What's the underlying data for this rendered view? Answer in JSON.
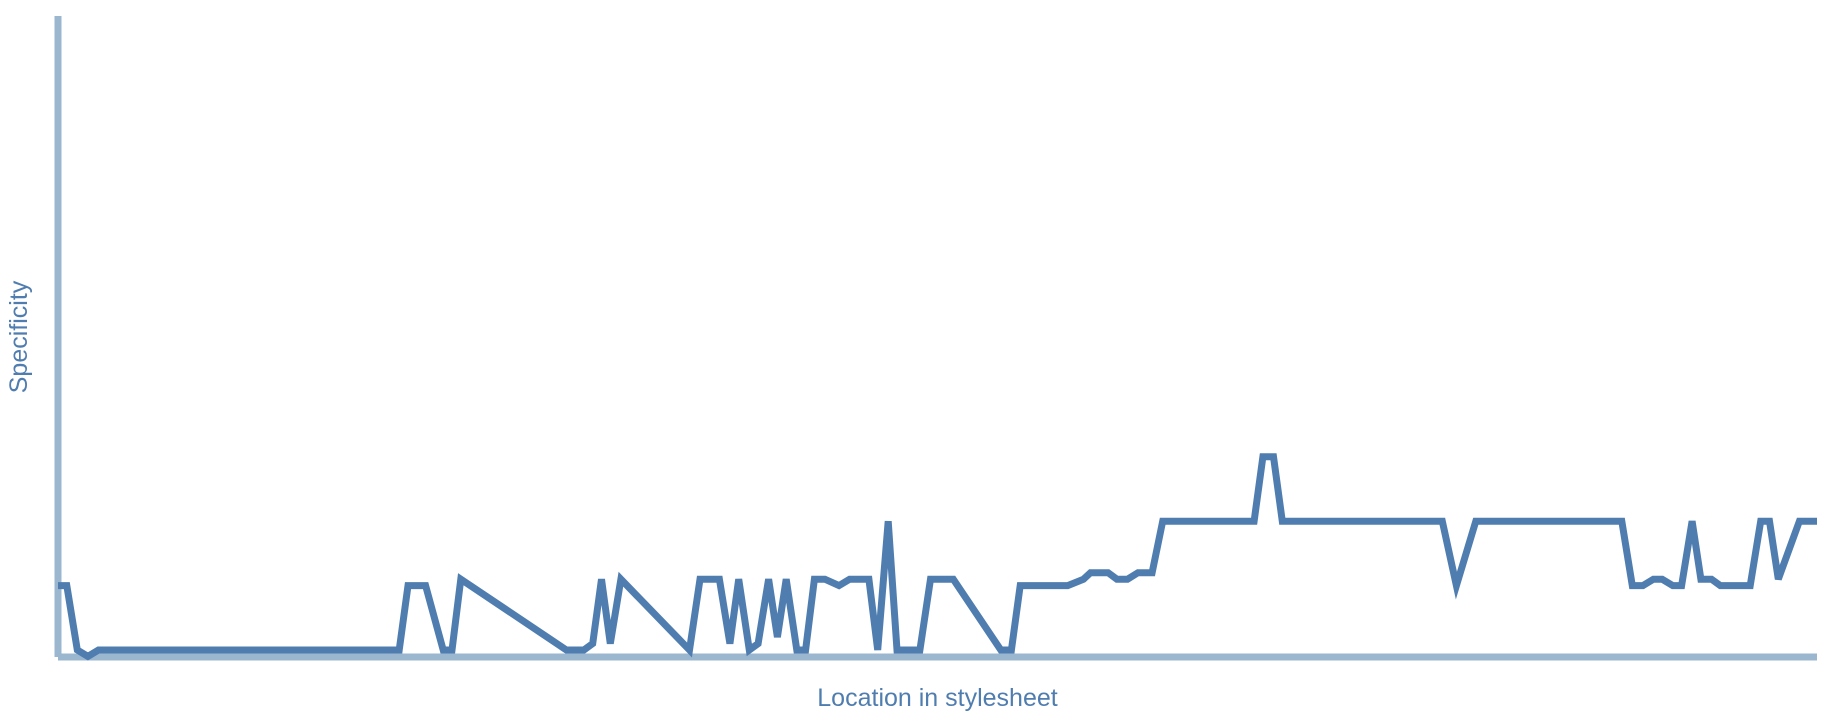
{
  "chart_data": {
    "type": "line",
    "xlabel": "Location in stylesheet",
    "ylabel": "Specificity",
    "colors": {
      "series": "#507daf",
      "axis": "#9bb6cf",
      "label": "#507daf"
    },
    "grid": false,
    "xlim": [
      0,
      1
    ],
    "ylim": [
      0,
      100
    ],
    "x": [
      0.0,
      0.005,
      0.011,
      0.017,
      0.023,
      0.194,
      0.199,
      0.209,
      0.219,
      0.224,
      0.229,
      0.289,
      0.294,
      0.299,
      0.304,
      0.309,
      0.314,
      0.32,
      0.359,
      0.365,
      0.376,
      0.382,
      0.387,
      0.393,
      0.398,
      0.404,
      0.409,
      0.414,
      0.42,
      0.425,
      0.43,
      0.436,
      0.444,
      0.45,
      0.455,
      0.461,
      0.466,
      0.472,
      0.477,
      0.482,
      0.49,
      0.496,
      0.504,
      0.509,
      0.536,
      0.542,
      0.547,
      0.556,
      0.569,
      0.574,
      0.583,
      0.587,
      0.591,
      0.597,
      0.602,
      0.608,
      0.614,
      0.622,
      0.628,
      0.68,
      0.685,
      0.691,
      0.696,
      0.701,
      0.706,
      0.712,
      0.787,
      0.795,
      0.806,
      0.884,
      0.889,
      0.895,
      0.901,
      0.907,
      0.912,
      0.918,
      0.923,
      0.929,
      0.934,
      0.94,
      0.945,
      0.951,
      0.957,
      0.962,
      0.968,
      0.973,
      0.978,
      0.99,
      0.994,
      1.0
    ],
    "values": [
      10,
      10,
      0,
      -1,
      0,
      0,
      10,
      10,
      0,
      0,
      11,
      0,
      0,
      0,
      1,
      11,
      1,
      11,
      0,
      11,
      11,
      1,
      11,
      0,
      1,
      11,
      2,
      11,
      0,
      0,
      11,
      11,
      10,
      11,
      11,
      11,
      0,
      20,
      0,
      0,
      0,
      11,
      11,
      11,
      0,
      0,
      10,
      10,
      10,
      10,
      11,
      12,
      12,
      12,
      11,
      11,
      12,
      12,
      20,
      20,
      30,
      30,
      20,
      20,
      20,
      20,
      20,
      10,
      20,
      20,
      20,
      10,
      10,
      11,
      11,
      10,
      10,
      20,
      11,
      11,
      10,
      10,
      10,
      10,
      20,
      20,
      11,
      20,
      20,
      20
    ]
  }
}
